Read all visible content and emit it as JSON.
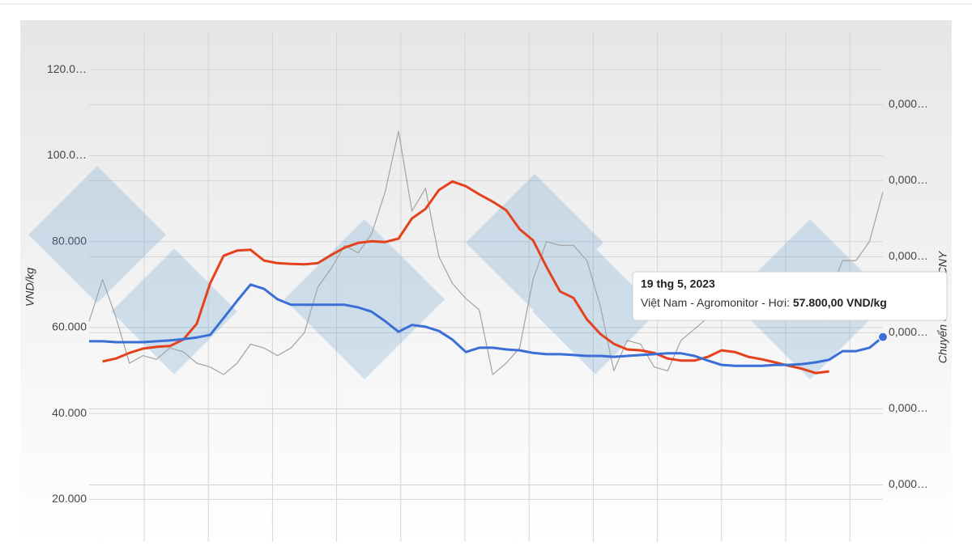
{
  "chart_data": {
    "type": "line",
    "ylabel": "VND/kg",
    "y2label": "Chuyển đổi VND-CNY",
    "categories": [
      null,
      null,
      null,
      null,
      null,
      null,
      null,
      null,
      null,
      null,
      null,
      null,
      null,
      null,
      null,
      null,
      null,
      null,
      null,
      null,
      null,
      null,
      null,
      null,
      null,
      null,
      null,
      null,
      null,
      null,
      null,
      null,
      null,
      null,
      null,
      null,
      null,
      null,
      null,
      null,
      null,
      null,
      null,
      null,
      null,
      null,
      null,
      null,
      null,
      null,
      null,
      null,
      null,
      null,
      null,
      null,
      null,
      null,
      null,
      null
    ],
    "ylim": [
      10100,
      128700
    ],
    "yticks": [
      {
        "value": 120000,
        "label": "120.0…"
      },
      {
        "value": 100000,
        "label": "100.0…"
      },
      {
        "value": 80000,
        "label": "80.000"
      },
      {
        "value": 60000,
        "label": "60.000"
      },
      {
        "value": 40000,
        "label": "40.000"
      },
      {
        "value": 20000,
        "label": "20.000"
      }
    ],
    "y2lim": [
      0.000225,
      0.000359
    ],
    "y2ticks": [
      {
        "value": 0.00034,
        "label": "0,000…"
      },
      {
        "value": 0.00032,
        "label": "0,000…"
      },
      {
        "value": 0.0003,
        "label": "0,000…"
      },
      {
        "value": 0.00028,
        "label": "0,000…"
      },
      {
        "value": 0.00026,
        "label": "0,000…"
      },
      {
        "value": 0.00024,
        "label": "0,000…"
      }
    ],
    "grid": true,
    "series": [
      {
        "color": "#3b6fd6",
        "values": [
          56800,
          56800,
          56600,
          56600,
          56600,
          56800,
          57000,
          57300,
          57700,
          58300,
          62200,
          66200,
          70000,
          69000,
          66600,
          65300,
          65300,
          65300,
          65300,
          65300,
          64700,
          63700,
          61500,
          59000,
          60600,
          60200,
          59200,
          57200,
          54300,
          55300,
          55300,
          54900,
          54700,
          54100,
          53800,
          53800,
          53600,
          53400,
          53400,
          53200,
          53400,
          53600,
          53800,
          54000,
          54000,
          53400,
          52300,
          51300,
          51100,
          51100,
          51100,
          51300,
          51300,
          51500,
          51900,
          52500,
          54500,
          54500,
          55300,
          57800
        ]
      },
      {
        "color": "#e5411d",
        "values": [
          null,
          52100,
          52800,
          54100,
          55100,
          55500,
          55700,
          57200,
          60900,
          70300,
          76700,
          77900,
          78100,
          75600,
          75000,
          74800,
          74700,
          75000,
          76900,
          78600,
          79700,
          80100,
          79900,
          80700,
          85400,
          87600,
          92000,
          94000,
          92900,
          91000,
          89300,
          87300,
          82900,
          80300,
          74100,
          68400,
          66900,
          61900,
          58500,
          56200,
          54900,
          54700,
          54100,
          52800,
          52300,
          52300,
          53200,
          54700,
          54300,
          53200,
          52600,
          51900,
          51100,
          50400,
          49400,
          49800,
          null,
          null,
          null,
          null
        ]
      },
      {
        "color": "#a3a3a3",
        "axis": "y2",
        "values": [
          0.000283,
          0.000294,
          0.000284,
          0.000272,
          0.000274,
          0.000273,
          0.000276,
          0.000275,
          0.000272,
          0.000271,
          0.000269,
          0.000272,
          0.000277,
          0.000276,
          0.000274,
          0.000276,
          0.00028,
          0.000292,
          0.000297,
          0.000303,
          0.000301,
          0.000306,
          0.000317,
          0.000333,
          0.000312,
          0.000318,
          0.0003,
          0.000293,
          0.000289,
          0.000286,
          0.000269,
          0.000272,
          0.000276,
          0.000294,
          0.000304,
          0.000303,
          0.000303,
          0.000299,
          0.000287,
          0.00027,
          0.000278,
          0.000277,
          0.000271,
          0.00027,
          0.000278,
          0.000281,
          0.000284,
          0.000287,
          0.000284,
          0.000289,
          0.000288,
          0.000287,
          0.000285,
          0.000284,
          0.000284,
          0.00029,
          0.000299,
          0.000299,
          0.000304,
          0.000317
        ]
      }
    ],
    "tooltip": {
      "title": "19 thg 5, 2023",
      "label": "Việt Nam - Agromonitor - Hơi:",
      "value_label": "57.800,00 VND/kg"
    }
  }
}
